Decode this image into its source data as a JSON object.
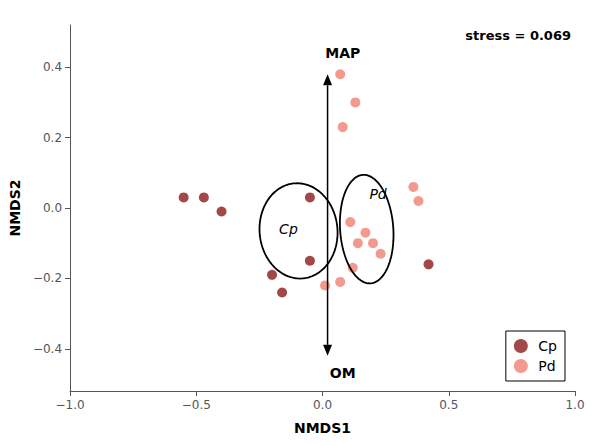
{
  "chart_data": {
    "type": "scatter",
    "xlabel": "NMDS1",
    "ylabel": "NMDS2",
    "series": [
      {
        "name": "Cp",
        "color": "#8B1A1A",
        "values": [
          [
            -0.55,
            0.03
          ],
          [
            -0.47,
            0.03
          ],
          [
            -0.4,
            -0.01
          ],
          [
            -0.05,
            0.03
          ],
          [
            -0.2,
            -0.19
          ],
          [
            -0.16,
            -0.24
          ],
          [
            -0.05,
            -0.15
          ],
          [
            0.42,
            -0.16
          ]
        ]
      },
      {
        "name": "Pd",
        "color": "#F08070",
        "values": [
          [
            0.07,
            0.38
          ],
          [
            0.13,
            0.3
          ],
          [
            0.08,
            0.23
          ],
          [
            0.36,
            0.06
          ],
          [
            0.38,
            0.02
          ],
          [
            0.11,
            -0.04
          ],
          [
            0.17,
            -0.07
          ],
          [
            0.14,
            -0.1
          ],
          [
            0.2,
            -0.1
          ],
          [
            0.23,
            -0.13
          ],
          [
            0.12,
            -0.17
          ],
          [
            0.07,
            -0.21
          ],
          [
            0.01,
            -0.22
          ]
        ]
      }
    ],
    "ellipses": [
      {
        "label": "Cp",
        "cx": -0.095,
        "cy": -0.065,
        "width": 0.31,
        "height": 0.27,
        "angle": -8,
        "label_x": -0.135,
        "label_y": -0.06
      },
      {
        "label": "Pd",
        "cx": 0.175,
        "cy": -0.06,
        "width": 0.21,
        "height": 0.31,
        "angle": 8,
        "label_x": 0.22,
        "label_y": 0.04
      }
    ],
    "arrows": [
      {
        "label": "MAP",
        "start": [
          0.02,
          0.0
        ],
        "end": [
          0.02,
          0.38
        ],
        "label_x": 0.08,
        "label_y": 0.42
      },
      {
        "label": "OM",
        "start": [
          0.02,
          0.0
        ],
        "end": [
          0.02,
          -0.42
        ],
        "label_x": 0.08,
        "label_y": -0.45
      }
    ],
    "annotation": "stress = 0.069",
    "xlim": [
      -1.0,
      1.0
    ],
    "ylim": [
      -0.52,
      0.52
    ],
    "xticks": [
      {
        "value": -1.0,
        "label": "−1.0"
      },
      {
        "value": -0.5,
        "label": "−0.5"
      },
      {
        "value": 0.0,
        "label": "0.0"
      },
      {
        "value": 0.5,
        "label": "0.5"
      },
      {
        "value": 1.0,
        "label": "1.0"
      }
    ],
    "yticks": [
      {
        "value": -0.4,
        "label": "−0.4"
      },
      {
        "value": -0.2,
        "label": "−0.2"
      },
      {
        "value": 0.0,
        "label": "0.0"
      },
      {
        "value": 0.2,
        "label": "0.2"
      },
      {
        "value": 0.4,
        "label": "0.4"
      }
    ],
    "marker": "circle",
    "legend": "lower right",
    "grid": false
  }
}
